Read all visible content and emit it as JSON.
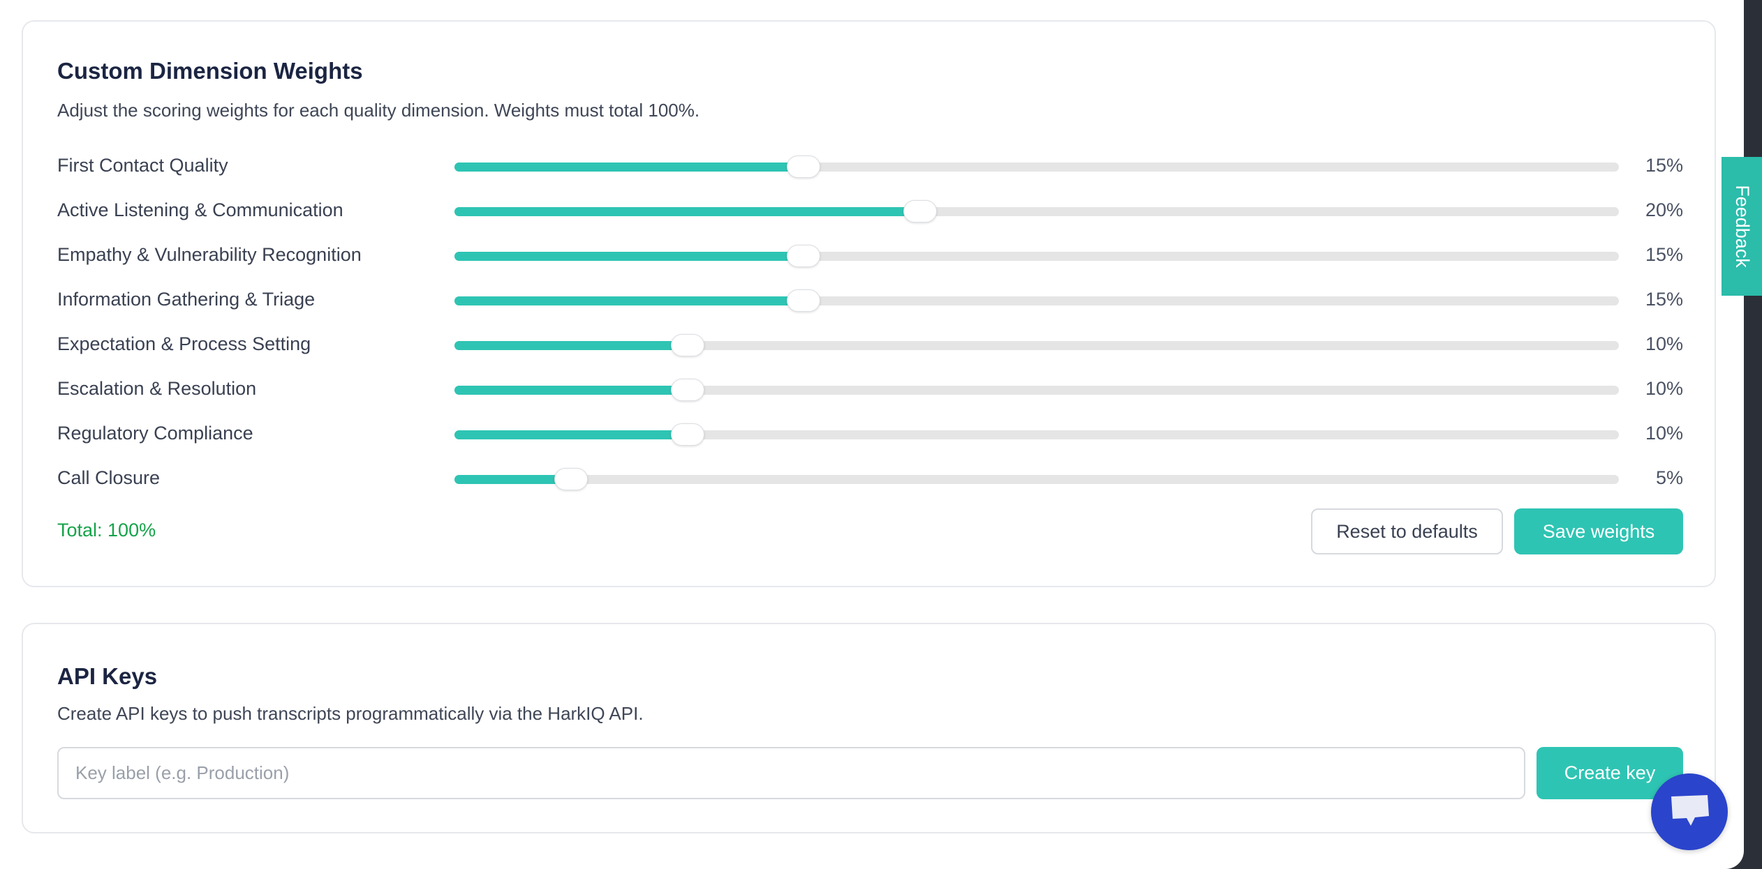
{
  "weights": {
    "title": "Custom Dimension Weights",
    "subtitle": "Adjust the scoring weights for each quality dimension. Weights must total 100%.",
    "slider_max": 50,
    "dimensions": [
      {
        "label": "First Contact Quality",
        "value": 15,
        "display": "15%"
      },
      {
        "label": "Active Listening & Communication",
        "value": 20,
        "display": "20%"
      },
      {
        "label": "Empathy & Vulnerability Recognition",
        "value": 15,
        "display": "15%"
      },
      {
        "label": "Information Gathering & Triage",
        "value": 15,
        "display": "15%"
      },
      {
        "label": "Expectation & Process Setting",
        "value": 10,
        "display": "10%"
      },
      {
        "label": "Escalation & Resolution",
        "value": 10,
        "display": "10%"
      },
      {
        "label": "Regulatory Compliance",
        "value": 10,
        "display": "10%"
      },
      {
        "label": "Call Closure",
        "value": 5,
        "display": "5%"
      }
    ],
    "total": "Total: 100%",
    "reset_label": "Reset to defaults",
    "save_label": "Save weights"
  },
  "api_keys": {
    "title": "API Keys",
    "subtitle": "Create API keys to push transcripts programmatically via the HarkIQ API.",
    "input_value": "",
    "input_placeholder": "Key label (e.g. Production)",
    "create_label": "Create key"
  },
  "feedback_label": "Feedback",
  "colors": {
    "accent": "#2ec4b3",
    "total_ok": "#16a34a",
    "chat": "#2a44cc"
  }
}
